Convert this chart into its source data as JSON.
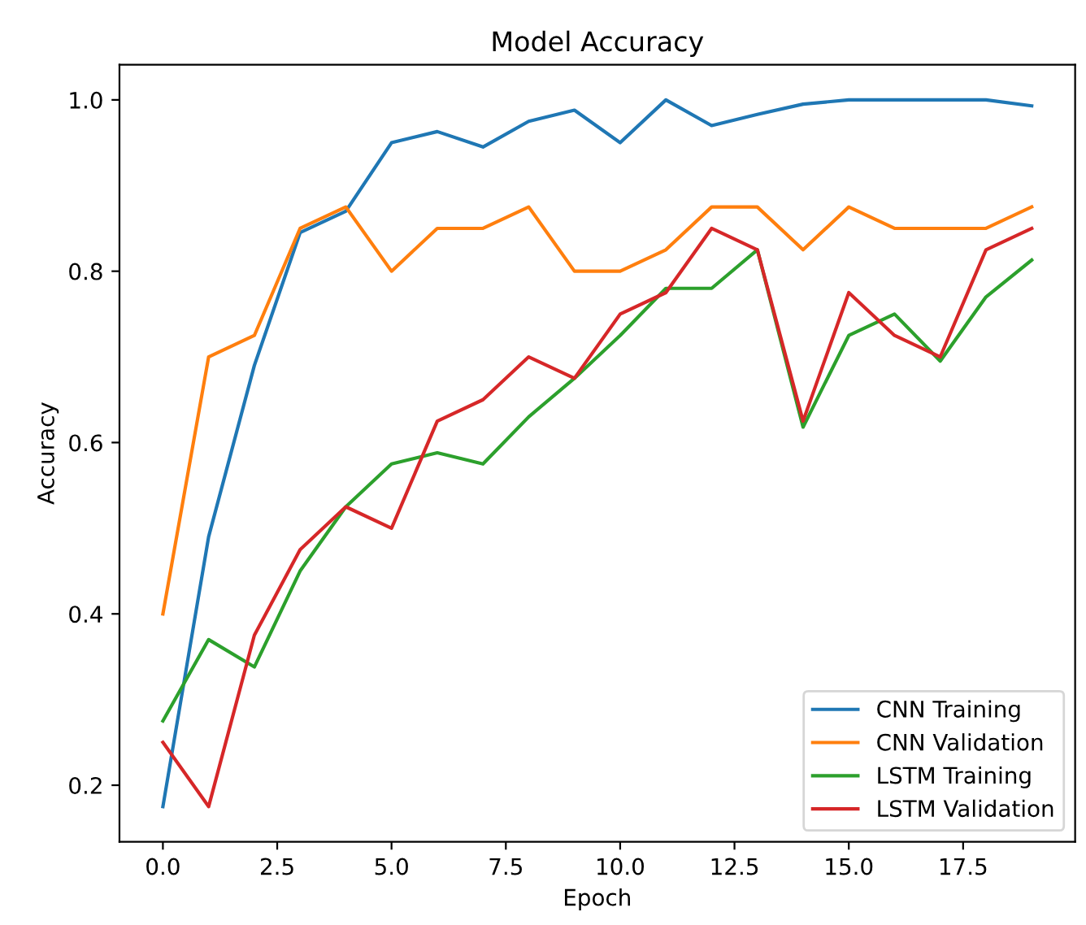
{
  "chart_data": {
    "type": "line",
    "title": "Model Accuracy",
    "xlabel": "Epoch",
    "ylabel": "Accuracy",
    "x": [
      0,
      1,
      2,
      3,
      4,
      5,
      6,
      7,
      8,
      9,
      10,
      11,
      12,
      13,
      14,
      15,
      16,
      17,
      18,
      19
    ],
    "series": [
      {
        "name": "CNN Training",
        "color": "#1f77b4",
        "values": [
          0.175,
          0.49,
          0.69,
          0.845,
          0.87,
          0.95,
          0.963,
          0.945,
          0.975,
          0.988,
          0.95,
          1.0,
          0.97,
          0.983,
          0.995,
          1.0,
          1.0,
          1.0,
          1.0,
          0.993
        ]
      },
      {
        "name": "CNN Validation",
        "color": "#ff7f0e",
        "values": [
          0.4,
          0.7,
          0.725,
          0.85,
          0.875,
          0.8,
          0.85,
          0.85,
          0.875,
          0.8,
          0.8,
          0.825,
          0.875,
          0.875,
          0.825,
          0.875,
          0.85,
          0.85,
          0.85,
          0.875
        ]
      },
      {
        "name": "LSTM Training",
        "color": "#2ca02c",
        "values": [
          0.275,
          0.37,
          0.338,
          0.45,
          0.525,
          0.575,
          0.588,
          0.575,
          0.63,
          0.675,
          0.725,
          0.78,
          0.78,
          0.825,
          0.618,
          0.725,
          0.75,
          0.695,
          0.77,
          0.813
        ]
      },
      {
        "name": "LSTM Validation",
        "color": "#d62728",
        "values": [
          0.25,
          0.175,
          0.375,
          0.475,
          0.525,
          0.5,
          0.625,
          0.65,
          0.7,
          0.675,
          0.75,
          0.775,
          0.85,
          0.825,
          0.625,
          0.775,
          0.725,
          0.7,
          0.825,
          0.85
        ]
      }
    ],
    "xlim": [
      -0.95,
      19.95
    ],
    "ylim": [
      0.134,
      1.041
    ],
    "xticks": [
      {
        "value": 0,
        "label": "0.0"
      },
      2.5,
      {
        "value": 5,
        "label": "5.0"
      },
      7.5,
      {
        "value": 10,
        "label": "10.0"
      },
      12.5,
      {
        "value": 15,
        "label": "15.0"
      },
      17.5
    ],
    "yticks": [
      0.2,
      0.4,
      0.6,
      0.8,
      {
        "value": 1,
        "label": "1.0"
      }
    ],
    "grid": false,
    "legend": "bottom right",
    "line_style": "solid"
  }
}
